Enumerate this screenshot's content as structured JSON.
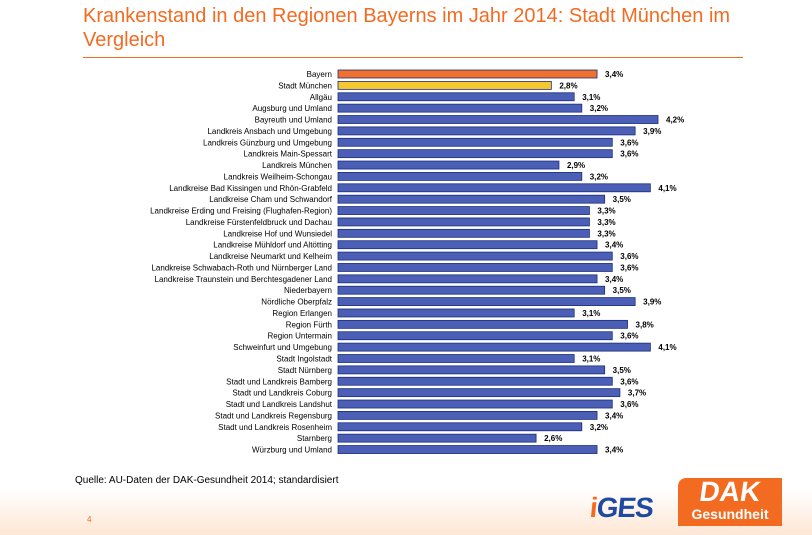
{
  "slide": {
    "title": "Krankenstand in den Regionen Bayerns im Jahr 2014: Stadt München im Vergleich",
    "source": "Quelle: AU-Daten der DAK-Gesundheit 2014; standardisiert",
    "page_number": "4"
  },
  "logos": {
    "iges_i": "i",
    "iges_rest": "GES",
    "dak_top": "DAK",
    "dak_bottom": "Gesundheit"
  },
  "colors": {
    "accent": "#f26b21",
    "bar_default": "#4a5fb5",
    "bar_bayern": "#f07030",
    "bar_muenchen": "#f6c830",
    "bar_stroke": "#1c2e7a"
  },
  "chart_data": {
    "type": "bar",
    "orientation": "horizontal",
    "title": "Krankenstand in den Regionen Bayerns im Jahr 2014: Stadt München im Vergleich",
    "xlabel": "",
    "ylabel": "",
    "xlim": [
      0,
      4.2
    ],
    "value_suffix": "%",
    "categories": [
      "Bayern",
      "Stadt München",
      "Allgäu",
      "Augsburg und Umland",
      "Bayreuth und Umland",
      "Landkreis Ansbach und Umgebung",
      "Landkreis Günzburg und Umgebung",
      "Landkreis Main-Spessart",
      "Landkreis München",
      "Landkreis Weilheim-Schongau",
      "Landkreise Bad Kissingen und Rhön-Grabfeld",
      "Landkreise Cham und Schwandorf",
      "Landkreise Erding und Freising (Flughafen-Region)",
      "Landkreise Fürstenfeldbruck und Dachau",
      "Landkreise Hof und Wunsiedel",
      "Landkreise Mühldorf und Altötting",
      "Landkreise Neumarkt und Kelheim",
      "Landkreise Schwabach-Roth und Nürnberger Land",
      "Landkreise Traunstein und Berchtesgadener Land",
      "Niederbayern",
      "Nördliche Oberpfalz",
      "Region Erlangen",
      "Region Fürth",
      "Region Untermain",
      "Schweinfurt und Umgebung",
      "Stadt Ingolstadt",
      "Stadt Nürnberg",
      "Stadt und Landkreis Bamberg",
      "Stadt und Landkreis Coburg",
      "Stadt und Landkreis Landshut",
      "Stadt und Landkreis Regensburg",
      "Stadt und Landkreis Rosenheim",
      "Starnberg",
      "Würzburg und Umland"
    ],
    "values": [
      3.4,
      2.8,
      3.1,
      3.2,
      4.2,
      3.9,
      3.6,
      3.6,
      2.9,
      3.2,
      4.1,
      3.5,
      3.3,
      3.3,
      3.3,
      3.4,
      3.6,
      3.6,
      3.4,
      3.5,
      3.9,
      3.1,
      3.8,
      3.6,
      4.1,
      3.1,
      3.5,
      3.6,
      3.7,
      3.6,
      3.4,
      3.2,
      2.6,
      3.4
    ],
    "value_labels": [
      "3,4%",
      "2,8%",
      "3,1%",
      "3,2%",
      "4,2%",
      "3,9%",
      "3,6%",
      "3,6%",
      "2,9%",
      "3,2%",
      "4,1%",
      "3,5%",
      "3,3%",
      "3,3%",
      "3,3%",
      "3,4%",
      "3,6%",
      "3,6%",
      "3,4%",
      "3,5%",
      "3,9%",
      "3,1%",
      "3,8%",
      "3,6%",
      "4,1%",
      "3,1%",
      "3,5%",
      "3,6%",
      "3,7%",
      "3,6%",
      "3,4%",
      "3,2%",
      "2,6%",
      "3,4%"
    ],
    "highlight": {
      "Bayern": "bar_bayern",
      "Stadt München": "bar_muenchen"
    }
  }
}
